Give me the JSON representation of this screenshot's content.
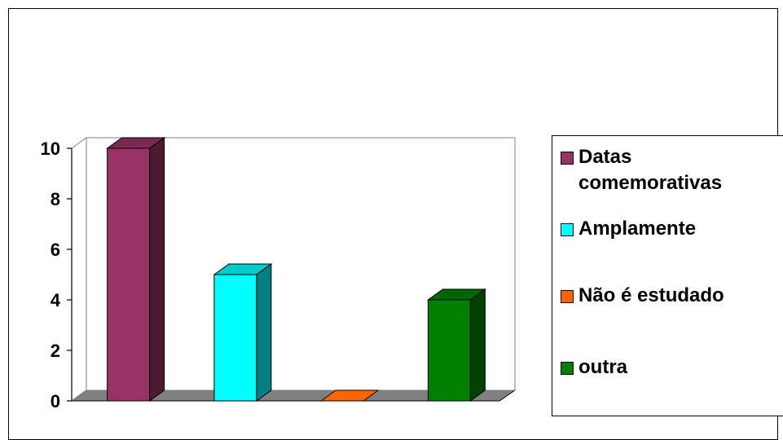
{
  "chart_data": {
    "type": "bar",
    "categories": [
      "Datas comemorativas",
      "Amplamente",
      "Não é estudado",
      "outra"
    ],
    "values": [
      10,
      5,
      0,
      4
    ],
    "colors": [
      "#993366",
      "#00FFFF",
      "#FF6600",
      "#008000"
    ],
    "side_colors": [
      "#4d1a33",
      "#008080",
      "#803300",
      "#004000"
    ],
    "top_colors": [
      "#7a2952",
      "#00cccc",
      "#cc5200",
      "#006600"
    ],
    "y_ticks": [
      "0",
      "2",
      "4",
      "6",
      "8",
      "10"
    ],
    "ylim": [
      0,
      10
    ],
    "legend_position": "right",
    "grid": false,
    "legend": [
      {
        "label": "Datas\ncomemorativas",
        "color": "#993366"
      },
      {
        "label": "Amplamente",
        "color": "#00FFFF"
      },
      {
        "label": "Não é estudado",
        "color": "#FF6600"
      },
      {
        "label": "outra",
        "color": "#008000"
      }
    ]
  }
}
